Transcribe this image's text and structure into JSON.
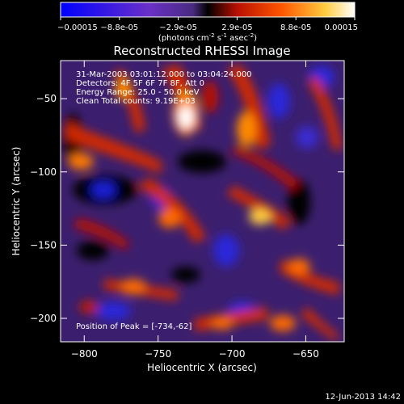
{
  "chart_data": {
    "type": "heatmap",
    "title": "Reconstructed RHESSI Image",
    "xlabel": "Heliocentric X (arcsec)",
    "ylabel": "Heliocentric Y (arcsec)",
    "xlim": [
      -816,
      -624
    ],
    "ylim": [
      -216,
      -24
    ],
    "xticks": [
      -800,
      -750,
      -700,
      -650
    ],
    "yticks": [
      -200,
      -150,
      -100,
      -50
    ],
    "colorbar": {
      "ticks": [
        "-0.00015",
        "-8.8e-05",
        "-2.9e-05",
        "2.9e-05",
        "8.8e-05",
        "0.00015"
      ],
      "range": [
        -0.00015,
        0.00015
      ],
      "label_parts": {
        "pre": "(photons cm",
        "exp1": "-2",
        "mid1": " s",
        "exp2": "-1",
        "mid2": " asec",
        "exp3": "-2",
        "post": ")"
      },
      "colors": [
        "#0000ff",
        "#7a3fd0",
        "#000000",
        "#cc1100",
        "#ff8800",
        "#ffff80",
        "#ffffff"
      ]
    },
    "annotations": {
      "time": "31-Mar-2003 03:01:12.000 to 03:04:24.000",
      "detectors": "Detectors: 4F 5F 6F 7F 8F, Att 0",
      "energy": "Energy Range: 25.0 - 50.0 keV",
      "clean": "Clean    Total counts: 9.19E+03",
      "peak": "Position of Peak = [-734,-62]"
    },
    "peak": [
      -734,
      -62
    ],
    "footer_date": "12-Jun-2013 14:42"
  }
}
